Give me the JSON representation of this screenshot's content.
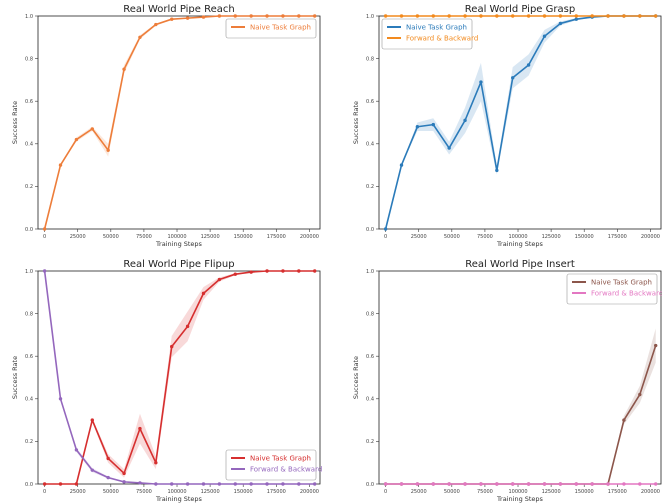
{
  "chart_data": [
    {
      "type": "line",
      "title": "Real World Pipe Reach",
      "xlabel": "Training Steps",
      "ylabel": "Success Rate",
      "xlim": [
        -5000,
        208000
      ],
      "ylim": [
        0,
        1.0
      ],
      "xticks": [
        "0",
        "25000",
        "50000",
        "75000",
        "100000",
        "125000",
        "150000",
        "175000",
        "200000"
      ],
      "xtick_values": [
        0,
        25000,
        50000,
        75000,
        100000,
        125000,
        150000,
        175000,
        200000
      ],
      "yticks": [
        "0.0",
        "0.2",
        "0.4",
        "0.6",
        "0.8",
        "1.0"
      ],
      "ytick_values": [
        0,
        0.2,
        0.4,
        0.6,
        0.8,
        1.0
      ],
      "grid": false,
      "legend": "top-right",
      "x": [
        0,
        12000,
        24000,
        36000,
        48000,
        60000,
        72000,
        84000,
        96000,
        108000,
        120000,
        132000,
        144000,
        156000,
        168000,
        180000,
        192000,
        204000
      ],
      "series": [
        {
          "name": "Naive Task Graph",
          "color": "#ed7d3a",
          "values": [
            0.0,
            0.3,
            0.42,
            0.47,
            0.37,
            0.75,
            0.9,
            0.96,
            0.985,
            0.99,
            0.995,
            1.0,
            1.0,
            1.0,
            1.0,
            1.0,
            1.0,
            1.0
          ],
          "band": [
            0,
            0,
            0.01,
            0.01,
            0.03,
            0.02,
            0.01,
            0.005,
            0.003,
            0,
            0,
            0,
            0,
            0,
            0,
            0,
            0,
            0
          ]
        }
      ]
    },
    {
      "type": "line",
      "title": "Real World Pipe Grasp",
      "xlabel": "Training Steps",
      "ylabel": "Success Rate",
      "xlim": [
        -5000,
        208000
      ],
      "ylim": [
        0,
        1.0
      ],
      "xticks": [
        "0",
        "25000",
        "50000",
        "75000",
        "100000",
        "125000",
        "150000",
        "175000",
        "200000"
      ],
      "xtick_values": [
        0,
        25000,
        50000,
        75000,
        100000,
        125000,
        150000,
        175000,
        200000
      ],
      "yticks": [
        "0.0",
        "0.2",
        "0.4",
        "0.6",
        "0.8",
        "1.0"
      ],
      "ytick_values": [
        0,
        0.2,
        0.4,
        0.6,
        0.8,
        1.0
      ],
      "grid": false,
      "legend": "top-left",
      "x": [
        0,
        12000,
        24000,
        36000,
        48000,
        60000,
        72000,
        84000,
        96000,
        108000,
        120000,
        132000,
        144000,
        156000,
        168000,
        180000,
        192000,
        204000
      ],
      "series": [
        {
          "name": "Naive Task Graph",
          "color": "#2b7bba",
          "values": [
            0.0,
            0.3,
            0.48,
            0.49,
            0.38,
            0.51,
            0.69,
            0.275,
            0.71,
            0.77,
            0.905,
            0.965,
            0.985,
            0.995,
            1.0,
            1.0,
            1.0,
            1.0
          ],
          "band": [
            0,
            0,
            0.02,
            0.03,
            0.03,
            0.06,
            0.09,
            0.02,
            0.05,
            0.05,
            0.03,
            0.01,
            0.005,
            0.003,
            0,
            0,
            0,
            0
          ]
        },
        {
          "name": "Forward & Backward",
          "color": "#f28a1e",
          "values": [
            1.0,
            1.0,
            1.0,
            1.0,
            1.0,
            1.0,
            1.0,
            1.0,
            1.0,
            1.0,
            1.0,
            1.0,
            1.0,
            1.0,
            1.0,
            1.0,
            1.0,
            1.0
          ],
          "band": [
            0,
            0,
            0,
            0,
            0,
            0,
            0,
            0,
            0,
            0,
            0,
            0,
            0,
            0,
            0,
            0,
            0,
            0
          ]
        }
      ]
    },
    {
      "type": "line",
      "title": "Real World Pipe Flipup",
      "xlabel": "Training Steps",
      "ylabel": "Success Rate",
      "xlim": [
        -5000,
        208000
      ],
      "ylim": [
        0,
        1.0
      ],
      "xticks": [
        "0",
        "25000",
        "50000",
        "75000",
        "100000",
        "125000",
        "150000",
        "175000",
        "200000"
      ],
      "xtick_values": [
        0,
        25000,
        50000,
        75000,
        100000,
        125000,
        150000,
        175000,
        200000
      ],
      "yticks": [
        "0.0",
        "0.2",
        "0.4",
        "0.6",
        "0.8",
        "1.0"
      ],
      "ytick_values": [
        0,
        0.2,
        0.4,
        0.6,
        0.8,
        1.0
      ],
      "grid": false,
      "legend": "bottom-right",
      "x": [
        0,
        12000,
        24000,
        36000,
        48000,
        60000,
        72000,
        84000,
        96000,
        108000,
        120000,
        132000,
        144000,
        156000,
        168000,
        180000,
        192000,
        204000
      ],
      "series": [
        {
          "name": "Naive Task Graph",
          "color": "#d62f2f",
          "values": [
            0.0,
            0.0,
            0.0,
            0.3,
            0.12,
            0.05,
            0.26,
            0.1,
            0.645,
            0.74,
            0.895,
            0.96,
            0.985,
            0.995,
            1.0,
            1.0,
            1.0,
            1.0
          ],
          "band": [
            0,
            0,
            0,
            0.01,
            0.02,
            0.02,
            0.07,
            0.03,
            0.05,
            0.07,
            0.03,
            0.01,
            0.005,
            0,
            0,
            0,
            0,
            0
          ]
        },
        {
          "name": "Forward & Backward",
          "color": "#9467bd",
          "values": [
            1.0,
            0.4,
            0.16,
            0.065,
            0.03,
            0.01,
            0.005,
            0.0,
            0.0,
            0.0,
            0.0,
            0.0,
            0.0,
            0.0,
            0.0,
            0.0,
            0.0,
            0.0
          ],
          "band": [
            0,
            0,
            0.01,
            0.01,
            0.005,
            0.003,
            0,
            0,
            0,
            0,
            0,
            0,
            0,
            0,
            0,
            0,
            0,
            0
          ]
        }
      ]
    },
    {
      "type": "line",
      "title": "Real World Pipe Insert",
      "xlabel": "Training Steps",
      "ylabel": "Success Rate",
      "xlim": [
        -5000,
        208000
      ],
      "ylim": [
        0,
        1.0
      ],
      "xticks": [
        "0",
        "25000",
        "50000",
        "75000",
        "100000",
        "125000",
        "150000",
        "175000",
        "200000"
      ],
      "xtick_values": [
        0,
        25000,
        50000,
        75000,
        100000,
        125000,
        150000,
        175000,
        200000
      ],
      "yticks": [
        "0.0",
        "0.2",
        "0.4",
        "0.6",
        "0.8",
        "1.0"
      ],
      "ytick_values": [
        0,
        0.2,
        0.4,
        0.6,
        0.8,
        1.0
      ],
      "grid": false,
      "legend": "top-right",
      "x": [
        0,
        12000,
        24000,
        36000,
        48000,
        60000,
        72000,
        84000,
        96000,
        108000,
        120000,
        132000,
        144000,
        156000,
        168000,
        180000,
        192000,
        204000
      ],
      "series": [
        {
          "name": "Naive Task Graph",
          "color": "#8c564b",
          "values": [
            0.0,
            0.0,
            0.0,
            0.0,
            0.0,
            0.0,
            0.0,
            0.0,
            0.0,
            0.0,
            0.0,
            0.0,
            0.0,
            0.0,
            0.0,
            0.3,
            0.42,
            0.65
          ],
          "band": [
            0,
            0,
            0,
            0,
            0,
            0,
            0,
            0,
            0,
            0,
            0,
            0,
            0,
            0,
            0,
            0.02,
            0.04,
            0.08
          ]
        },
        {
          "name": "Forward & Backward",
          "color": "#e377c2",
          "values": [
            0.0,
            0.0,
            0.0,
            0.0,
            0.0,
            0.0,
            0.0,
            0.0,
            0.0,
            0.0,
            0.0,
            0.0,
            0.0,
            0.0,
            0.0,
            0.0,
            0.0,
            0.0
          ],
          "band": [
            0,
            0,
            0,
            0,
            0,
            0,
            0,
            0,
            0,
            0,
            0,
            0,
            0,
            0,
            0,
            0,
            0,
            0
          ]
        }
      ]
    }
  ]
}
